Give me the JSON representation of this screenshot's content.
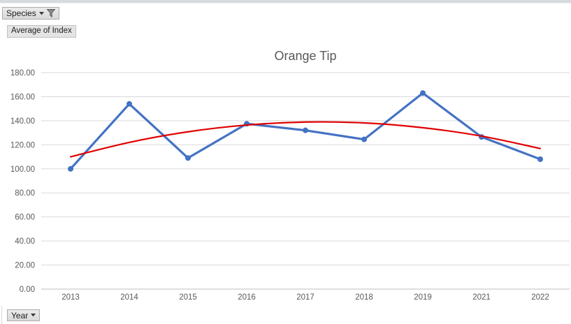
{
  "buttons": {
    "species": {
      "label": "Species",
      "filtered": true
    },
    "value": {
      "label": "Average of Index"
    },
    "year": {
      "label": "Year"
    }
  },
  "chart_data": {
    "type": "line",
    "title": "Orange Tip",
    "categories": [
      "2013",
      "2014",
      "2015",
      "2016",
      "2017",
      "2018",
      "2019",
      "2021",
      "2022"
    ],
    "series": [
      {
        "name": "Average of Index",
        "color": "#4472C4",
        "marker": "circle",
        "values": [
          100,
          154,
          109,
          137.5,
          132,
          124.5,
          163,
          126.5,
          108
        ]
      },
      {
        "name": "Polynomial trendline",
        "color": "#E00000",
        "marker": "none",
        "smooth": true,
        "values": [
          110,
          122,
          130.8,
          136.4,
          138.9,
          138.2,
          134.2,
          127.2,
          116.9
        ]
      }
    ],
    "xlabel": "",
    "ylabel": "",
    "ylim": [
      0,
      180
    ],
    "ytick_step": 20,
    "ytick_decimals": 2,
    "grid": "horizontal",
    "legend": "none",
    "grid_color": "#D9D9D9",
    "axis_line_color": "#BFBFBF",
    "label_color": "#595959",
    "title_color": "#595959"
  }
}
